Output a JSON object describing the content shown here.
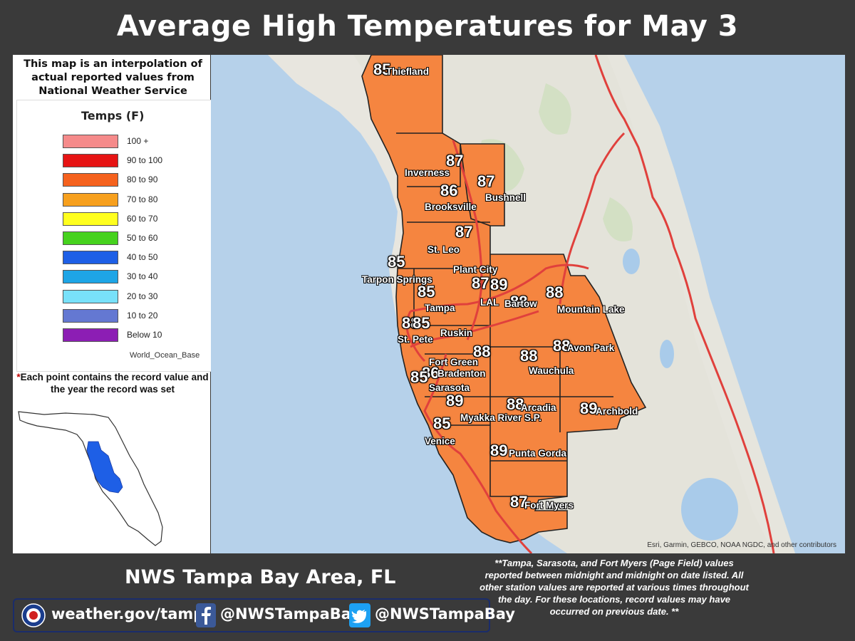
{
  "title": "Average High Temperatures for May 3",
  "intro_text": "This map is an interpolation of actual reported values from National Weather Service Cooperative Weather Observers",
  "legend": {
    "title": "Temps (F)",
    "items": [
      {
        "label": "100 +",
        "color": "#f58a8a"
      },
      {
        "label": "90 to 100",
        "color": "#e61414"
      },
      {
        "label": "80 to 90",
        "color": "#f5621e"
      },
      {
        "label": "70 to 80",
        "color": "#f7a01e"
      },
      {
        "label": "60 to 70",
        "color": "#ffff1e"
      },
      {
        "label": "50 to 60",
        "color": "#46d21e"
      },
      {
        "label": "40 to 50",
        "color": "#1e5fe6"
      },
      {
        "label": "30 to 40",
        "color": "#1ea5e6"
      },
      {
        "label": "20 to 30",
        "color": "#78e1fa"
      },
      {
        "label": "10 to 20",
        "color": "#6478d2"
      },
      {
        "label": "Below 10",
        "color": "#8c1eb4"
      }
    ],
    "source": "World_Ocean_Base"
  },
  "note": {
    "star": "*",
    "text": "Each point contains the record value and the year the record was set"
  },
  "map": {
    "attribution": "Esri, Garmin, GEBCO, NOAA NGDC, and other contributors",
    "region_color": "#f58540",
    "stations": [
      {
        "name": "Thiefland",
        "value": "85"
      },
      {
        "name": "Inverness",
        "value": "87"
      },
      {
        "name": "Bushnell",
        "value": "87"
      },
      {
        "name": "Brooksville",
        "value": "86"
      },
      {
        "name": "St. Leo",
        "value": "87"
      },
      {
        "name": "Tarpon Springs",
        "value": "85"
      },
      {
        "name": "Plant City",
        "value": "87"
      },
      {
        "name": "Tampa",
        "value": "85"
      },
      {
        "name": "LAL",
        "value": "89"
      },
      {
        "name": "Bartow",
        "value": "88"
      },
      {
        "name": "Mountain Lake",
        "value": "88"
      },
      {
        "name": "St. Pete",
        "value": "88"
      },
      {
        "name": "St. Pete 2",
        "value": "85"
      },
      {
        "name": "Ruskin",
        "value": ""
      },
      {
        "name": "Fort Green",
        "value": "88"
      },
      {
        "name": "Wauchula",
        "value": "88"
      },
      {
        "name": "Avon Park",
        "value": "88"
      },
      {
        "name": "Bradenton",
        "value": "86"
      },
      {
        "name": "Sarasota",
        "value": "85"
      },
      {
        "name": "Myakka River S.P.",
        "value": "89"
      },
      {
        "name": "Arcadia",
        "value": "88"
      },
      {
        "name": "Archbold",
        "value": "89"
      },
      {
        "name": "Venice",
        "value": "85"
      },
      {
        "name": "Punta Gorda",
        "value": "89"
      },
      {
        "name": "Fort Myers",
        "value": "87"
      }
    ]
  },
  "office": "NWS Tampa Bay Area, FL",
  "social": {
    "website": "weather.gov/tampa",
    "facebook": "@NWSTampaBay",
    "twitter": "@NWSTampaBay"
  },
  "footnote": "**Tampa, Sarasota, and Fort Myers (Page Field) values reported between midnight and midnight on date listed. All other station values are reported at various times throughout the day. For these locations,  record values may have occurred on previous date. **"
}
